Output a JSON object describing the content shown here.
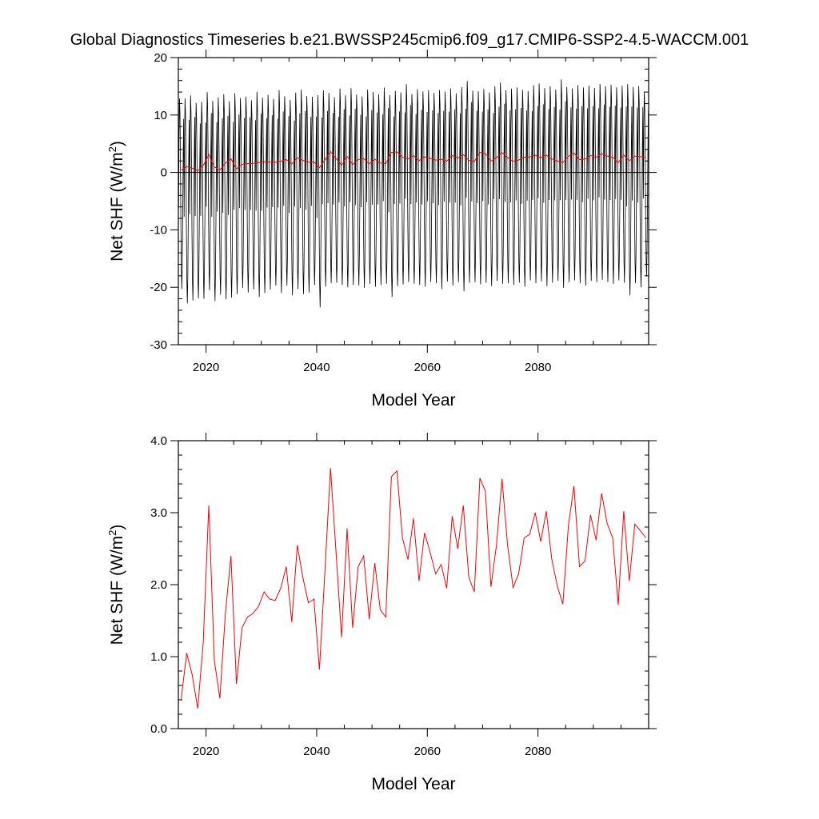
{
  "figure_title": "Global Diagnostics Timeseries b.e21.BWSSP245cmip6.f09_g17.CMIP6-SSP2-4.5-WACCM.001",
  "chart_data": [
    {
      "type": "line",
      "panel": "top",
      "xlabel": "Model Year",
      "ylabel": "Net SHF (W/m",
      "ylabel_sup": "2",
      "ylabel_close": ")",
      "xlim": [
        2015,
        2100
      ],
      "ylim": [
        -30,
        20
      ],
      "x_ticks": [
        2020,
        2040,
        2060,
        2080
      ],
      "x_tick_labels": [
        "2020",
        "2040",
        "2060",
        "2080"
      ],
      "y_ticks": [
        -30,
        -20,
        -10,
        0,
        10,
        20
      ],
      "y_tick_labels": [
        "-30",
        "-20",
        "-10",
        "0",
        "10",
        "20"
      ],
      "zero_line": true,
      "series": [
        {
          "color": "#000000",
          "frequency": "monthly",
          "annual_min": [
            -20.3,
            -22.8,
            -22.3,
            -21.9,
            -22.0,
            -20.5,
            -22.4,
            -21.3,
            -22.1,
            -21.8,
            -21.2,
            -20.1,
            -20.9,
            -20.4,
            -21.7,
            -21.0,
            -20.4,
            -19.7,
            -21.0,
            -19.7,
            -21.4,
            -20.3,
            -21.2,
            -20.9,
            -19.6,
            -23.5,
            -19.9,
            -19.3,
            -19.2,
            -19.6,
            -20.0,
            -19.6,
            -19.7,
            -20.1,
            -19.4,
            -19.9,
            -19.6,
            -19.4,
            -21.7,
            -19.8,
            -19.5,
            -19.1,
            -19.4,
            -19.6,
            -19.9,
            -19.1,
            -19.3,
            -20.3,
            -19.0,
            -19.7,
            -19.1,
            -20.7,
            -19.2,
            -19.1,
            -19.5,
            -19.2,
            -19.8,
            -18.9,
            -19.4,
            -19.3,
            -19.6,
            -19.2,
            -19.9,
            -18.8,
            -19.3,
            -19.0,
            -19.8,
            -19.2,
            -18.9,
            -20.1,
            -19.1,
            -18.8,
            -19.3,
            -19.7,
            -18.9,
            -19.1,
            -18.7,
            -19.1,
            -19.4,
            -18.8,
            -19.2,
            -21.4,
            -19.3,
            -20.0,
            -18.1
          ],
          "annual_max": [
            14.6,
            14.8,
            15.3,
            13.9,
            14.1,
            15.8,
            14.3,
            14.9,
            15.5,
            14.2,
            15.6,
            14.7,
            15.0,
            14.3,
            15.9,
            14.8,
            15.3,
            14.5,
            16.2,
            15.0,
            14.4,
            15.7,
            16.3,
            15.1,
            14.9,
            15.4,
            16.1,
            15.6,
            14.8,
            16.4,
            15.2,
            16.5,
            15.3,
            15.0,
            16.2,
            15.8,
            15.4,
            16.6,
            15.3,
            16.0,
            15.7,
            17.2,
            15.4,
            16.3,
            15.9,
            16.1,
            15.6,
            16.2,
            15.8,
            16.4,
            15.5,
            16.7,
            17.8,
            16.0,
            15.9,
            16.3,
            15.7,
            16.8,
            17.5,
            16.1,
            16.4,
            16.6,
            16.2,
            15.9,
            17.0,
            17.3,
            16.5,
            16.8,
            16.2,
            18.1,
            16.7,
            16.4,
            17.0,
            16.6,
            16.9,
            16.5,
            17.2,
            16.8,
            17.1,
            16.6,
            16.9,
            17.3,
            16.7,
            16.9,
            15.8
          ]
        },
        {
          "color": "#ff0000",
          "name_ref": "annual_mean",
          "frequency": "annual"
        }
      ]
    },
    {
      "type": "line",
      "panel": "bottom",
      "xlabel": "Model Year",
      "ylabel": "Net SHF (W/m",
      "ylabel_sup": "2",
      "ylabel_close": ")",
      "xlim": [
        2015,
        2100
      ],
      "ylim": [
        0.0,
        4.0
      ],
      "x_ticks": [
        2020,
        2040,
        2060,
        2080
      ],
      "x_tick_labels": [
        "2020",
        "2040",
        "2060",
        "2080"
      ],
      "y_ticks": [
        0,
        1,
        2,
        3,
        4
      ],
      "y_tick_labels": [
        "0.0",
        "1.0",
        "2.0",
        "3.0",
        "4.0"
      ],
      "series": [
        {
          "color": "#ff0000",
          "x": [
            2015.5,
            2016.5,
            2017.5,
            2018.5,
            2019.5,
            2020.5,
            2021.5,
            2022.5,
            2023.5,
            2024.5,
            2025.5,
            2026.5,
            2027.5,
            2028.5,
            2029.5,
            2030.5,
            2031.5,
            2032.5,
            2033.5,
            2034.5,
            2035.5,
            2036.5,
            2037.5,
            2038.5,
            2039.5,
            2040.5,
            2041.5,
            2042.5,
            2043.5,
            2044.5,
            2045.5,
            2046.5,
            2047.5,
            2048.5,
            2049.5,
            2050.5,
            2051.5,
            2052.5,
            2053.5,
            2054.5,
            2055.5,
            2056.5,
            2057.5,
            2058.5,
            2059.5,
            2060.5,
            2061.5,
            2062.5,
            2063.5,
            2064.5,
            2065.5,
            2066.5,
            2067.5,
            2068.5,
            2069.5,
            2070.5,
            2071.5,
            2072.5,
            2073.5,
            2074.5,
            2075.5,
            2076.5,
            2077.5,
            2078.5,
            2079.5,
            2080.5,
            2081.5,
            2082.5,
            2083.5,
            2084.5,
            2085.5,
            2086.5,
            2087.5,
            2088.5,
            2089.5,
            2090.5,
            2091.5,
            2092.5,
            2093.5,
            2094.5,
            2095.5,
            2096.5,
            2097.5,
            2098.5,
            2099.5
          ],
          "values": [
            0.4,
            1.05,
            0.75,
            0.28,
            1.2,
            3.1,
            0.95,
            0.42,
            1.6,
            2.4,
            0.62,
            1.4,
            1.55,
            1.6,
            1.7,
            1.9,
            1.8,
            1.78,
            1.95,
            2.25,
            1.48,
            2.55,
            2.1,
            1.75,
            1.8,
            0.82,
            2.2,
            3.62,
            2.45,
            1.27,
            2.78,
            1.4,
            2.25,
            2.4,
            1.52,
            2.3,
            1.65,
            1.55,
            3.5,
            3.58,
            2.65,
            2.35,
            2.92,
            2.05,
            2.72,
            2.45,
            2.15,
            2.28,
            1.95,
            2.95,
            2.5,
            3.1,
            2.1,
            1.9,
            3.48,
            3.3,
            1.97,
            2.55,
            3.47,
            2.55,
            1.96,
            2.15,
            2.65,
            2.7,
            3.0,
            2.6,
            3.02,
            2.35,
            1.98,
            1.73,
            2.82,
            3.37,
            2.25,
            2.33,
            2.97,
            2.62,
            3.27,
            2.85,
            2.65,
            1.72,
            3.02,
            2.05,
            2.84,
            2.75,
            2.65
          ]
        }
      ]
    }
  ]
}
